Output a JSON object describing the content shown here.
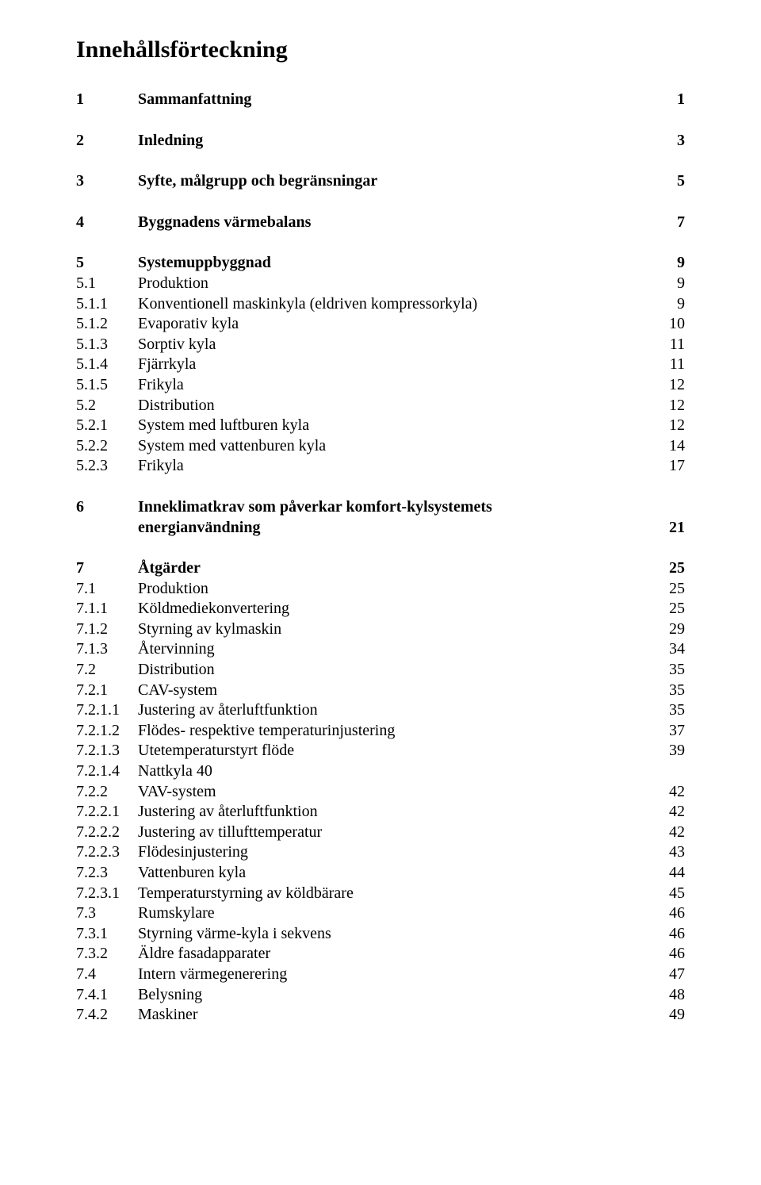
{
  "title": "Innehållsförteckning",
  "rows": [
    {
      "type": "row",
      "num": "1",
      "title": "Sammanfattning",
      "page": "1",
      "bold": true
    },
    {
      "type": "gap",
      "size": "l"
    },
    {
      "type": "row",
      "num": "2",
      "title": "Inledning",
      "page": "3",
      "bold": true
    },
    {
      "type": "gap",
      "size": "l"
    },
    {
      "type": "row",
      "num": "3",
      "title": "Syfte, målgrupp och begränsningar",
      "page": "5",
      "bold": true
    },
    {
      "type": "gap",
      "size": "l"
    },
    {
      "type": "row",
      "num": "4",
      "title": "Byggnadens värmebalans",
      "page": "7",
      "bold": true
    },
    {
      "type": "gap",
      "size": "l"
    },
    {
      "type": "row",
      "num": "5",
      "title": "Systemuppbyggnad",
      "page": "9",
      "bold": true
    },
    {
      "type": "row",
      "num": "5.1",
      "title": "Produktion",
      "page": "9"
    },
    {
      "type": "row",
      "num": "5.1.1",
      "title": "Konventionell maskinkyla (eldriven kompressorkyla)",
      "page": "9"
    },
    {
      "type": "row",
      "num": "5.1.2",
      "title": "Evaporativ kyla",
      "page": "10"
    },
    {
      "type": "row",
      "num": "5.1.3",
      "title": "Sorptiv kyla",
      "page": "11"
    },
    {
      "type": "row",
      "num": "5.1.4",
      "title": "Fjärrkyla",
      "page": "11"
    },
    {
      "type": "row",
      "num": "5.1.5",
      "title": "Frikyla",
      "page": "12"
    },
    {
      "type": "row",
      "num": "5.2",
      "title": "Distribution",
      "page": "12"
    },
    {
      "type": "row",
      "num": "5.2.1",
      "title": "System med luftburen kyla",
      "page": "12"
    },
    {
      "type": "row",
      "num": "5.2.2",
      "title": "System med vattenburen kyla",
      "page": "14"
    },
    {
      "type": "row",
      "num": "5.2.3",
      "title": "Frikyla",
      "page": "17"
    },
    {
      "type": "gap",
      "size": "l"
    },
    {
      "type": "row",
      "num": "6",
      "title": "Inneklimatkrav som påverkar komfort-kylsystemets",
      "page": "",
      "bold": true
    },
    {
      "type": "cont",
      "title": "energianvändning",
      "page": "21",
      "bold": true
    },
    {
      "type": "gap",
      "size": "l"
    },
    {
      "type": "row",
      "num": "7",
      "title": "Åtgärder",
      "page": "25",
      "bold": true
    },
    {
      "type": "row",
      "num": "7.1",
      "title": "Produktion",
      "page": "25"
    },
    {
      "type": "row",
      "num": "7.1.1",
      "title": "Köldmediekonvertering",
      "page": "25"
    },
    {
      "type": "row",
      "num": "7.1.2",
      "title": "Styrning av kylmaskin",
      "page": "29"
    },
    {
      "type": "row",
      "num": "7.1.3",
      "title": "Återvinning",
      "page": "34"
    },
    {
      "type": "row",
      "num": "7.2",
      "title": "Distribution",
      "page": "35"
    },
    {
      "type": "row",
      "num": "7.2.1",
      "title": "CAV-system",
      "page": "35"
    },
    {
      "type": "row",
      "num": "7.2.1.1",
      "title": "Justering av återluftfunktion",
      "page": "35"
    },
    {
      "type": "row",
      "num": "7.2.1.2",
      "title": "Flödes- respektive temperaturinjustering",
      "page": "37"
    },
    {
      "type": "row",
      "num": "7.2.1.3",
      "title": "Utetemperaturstyrt flöde",
      "page": "39"
    },
    {
      "type": "row",
      "num": "7.2.1.4",
      "title": "Nattkyla   40",
      "page": ""
    },
    {
      "type": "row",
      "num": "7.2.2",
      "title": "VAV-system",
      "page": "42"
    },
    {
      "type": "row",
      "num": "7.2.2.1",
      "title": "Justering av återluftfunktion",
      "page": "42"
    },
    {
      "type": "row",
      "num": "7.2.2.2",
      "title": "Justering av tillufttemperatur",
      "page": "42"
    },
    {
      "type": "row",
      "num": "7.2.2.3",
      "title": "Flödesinjustering",
      "page": "43"
    },
    {
      "type": "row",
      "num": "7.2.3",
      "title": "Vattenburen kyla",
      "page": "44"
    },
    {
      "type": "row",
      "num": "7.2.3.1",
      "title": "Temperaturstyrning av köldbärare",
      "page": "45"
    },
    {
      "type": "row",
      "num": "7.3",
      "title": "Rumskylare",
      "page": "46"
    },
    {
      "type": "row",
      "num": "7.3.1",
      "title": "Styrning värme-kyla i sekvens",
      "page": "46"
    },
    {
      "type": "row",
      "num": "7.3.2",
      "title": "Äldre fasadapparater",
      "page": "46"
    },
    {
      "type": "row",
      "num": "7.4",
      "title": "Intern värmegenerering",
      "page": "47"
    },
    {
      "type": "row",
      "num": "7.4.1",
      "title": "Belysning",
      "page": "48"
    },
    {
      "type": "row",
      "num": "7.4.2",
      "title": "Maskiner",
      "page": "49"
    }
  ]
}
